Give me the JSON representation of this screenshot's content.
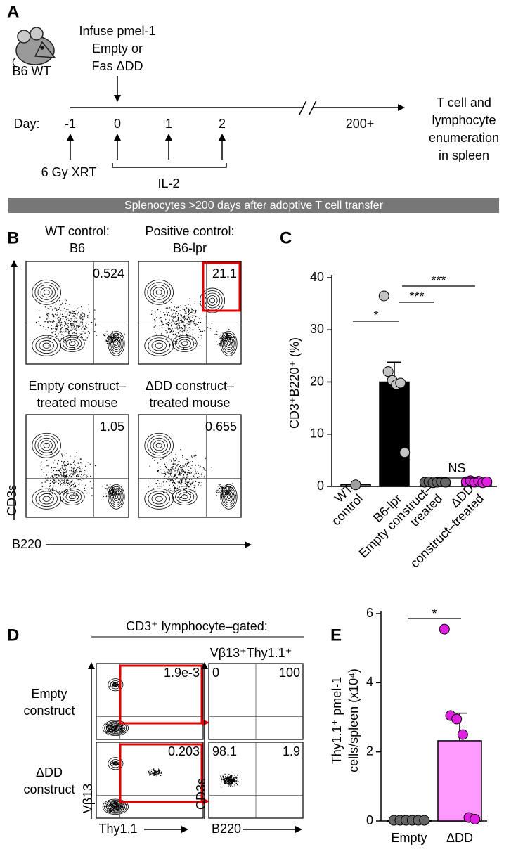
{
  "panel_labels": [
    "A",
    "B",
    "C",
    "D",
    "E"
  ],
  "panel_a": {
    "mouse_label": "B6 WT",
    "infusion": [
      "Infuse pmel-1",
      "Empty or",
      "Fas ΔDD"
    ],
    "day_label": "Day:",
    "days": [
      "-1",
      "0",
      "1",
      "2",
      "200+"
    ],
    "endpoint": [
      "T cell and",
      "lymphocyte",
      "enumeration",
      "in spleen"
    ],
    "irradiation": "6 Gy XRT",
    "cytokine": "IL-2"
  },
  "banner": "Splenocytes >200 days after adoptive T cell transfer",
  "panel_b": {
    "plots": [
      {
        "title": [
          "WT control:",
          "B6"
        ],
        "gate": "0.524"
      },
      {
        "title": [
          "Positive control:",
          "B6-lpr"
        ],
        "gate": "21.1"
      },
      {
        "title": [
          "Empty construct–",
          "treated mouse"
        ],
        "gate": "1.05"
      },
      {
        "title": [
          "ΔDD construct–",
          "treated mouse"
        ],
        "gate": "0.655"
      }
    ],
    "y_axis": "CD3ε",
    "x_axis": "B220"
  },
  "panel_d": {
    "header": "CD3⁺ lymphocyte–gated:",
    "subheader": "Vβ13⁺Thy1.1⁺",
    "rows": [
      {
        "label": [
          "Empty",
          "construct"
        ],
        "gate": "1.9e-3",
        "quadrants": [
          "0",
          "100"
        ]
      },
      {
        "label": [
          "ΔDD",
          "construct"
        ],
        "gate": "0.203",
        "quadrants": [
          "98.1",
          "1.9"
        ]
      }
    ],
    "axes": {
      "left_y": "Vβ13",
      "left_x": "Thy1.1",
      "right_y": "CD3ε",
      "right_x": "B220"
    }
  },
  "chart_data": [
    {
      "type": "bar",
      "y_label": "CD3⁺B220⁺ (%)",
      "categories": [
        [
          "WT",
          "control"
        ],
        [
          "B6-lpr"
        ],
        [
          "Empty construct–",
          "treated"
        ],
        [
          "ΔDD",
          "construct–treated"
        ]
      ],
      "values": [
        0.3,
        20,
        0.8,
        0.9
      ],
      "errors": [
        null,
        3.8,
        0.1,
        0.1
      ],
      "colors": [
        "#c8c8c8",
        "#000000",
        "#bdbdbd",
        "#f7a6f7"
      ],
      "points": [
        [
          0.3
        ],
        [
          36.5,
          22,
          20.3,
          19.5,
          19.8,
          6.5
        ],
        [
          0.8,
          0.9,
          0.7,
          0.8,
          0.9,
          0.8
        ],
        [
          0.9,
          1.1,
          0.8,
          1.0,
          0.7,
          0.9
        ]
      ],
      "point_colors": [
        "#a0a0a0",
        "#c4c4c4",
        "#666666",
        "#e020e0"
      ],
      "ylim": [
        0,
        40
      ],
      "yticks": [
        0,
        10,
        20,
        30,
        40
      ],
      "significance": [
        {
          "label": "*",
          "pair": [
            0,
            1
          ]
        },
        {
          "label": "***",
          "pair": [
            1,
            2
          ]
        },
        {
          "label": "***",
          "pair": [
            1,
            3
          ]
        },
        {
          "label": "NS",
          "pair": [
            2,
            3
          ]
        }
      ]
    },
    {
      "type": "bar",
      "y_label": [
        "Thy1.1⁺ pmel-1",
        "cells/spleen (x10⁴)"
      ],
      "categories": [
        [
          "Empty"
        ],
        [
          "ΔDD"
        ]
      ],
      "values": [
        0.02,
        2.32
      ],
      "errors": [
        null,
        0.8
      ],
      "colors": [
        "#a0a0a0",
        "#ff99ff"
      ],
      "points": [
        [
          0.02,
          0.02,
          0.02,
          0.02,
          0.02,
          0.02
        ],
        [
          5.55,
          3.05,
          2.95,
          2.5,
          0.1,
          0.05
        ]
      ],
      "point_colors": [
        "#666666",
        "#e020e0"
      ],
      "ylim": [
        0,
        6
      ],
      "yticks": [
        0,
        2,
        4,
        6
      ],
      "significance": [
        {
          "label": "*",
          "pair": [
            0,
            1
          ]
        }
      ]
    }
  ]
}
